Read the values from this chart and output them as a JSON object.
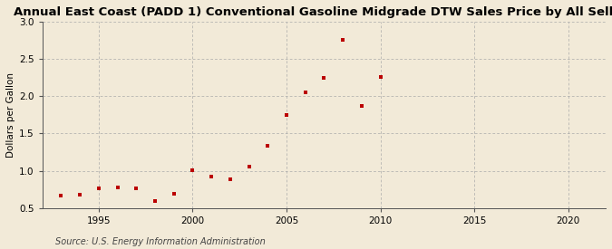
{
  "title": "Annual East Coast (PADD 1) Conventional Gasoline Midgrade DTW Sales Price by All Sellers",
  "ylabel": "Dollars per Gallon",
  "source": "Source: U.S. Energy Information Administration",
  "years": [
    1993,
    1994,
    1995,
    1996,
    1997,
    1998,
    1999,
    2000,
    2001,
    2002,
    2003,
    2004,
    2005,
    2006,
    2007,
    2008,
    2009,
    2010
  ],
  "values": [
    0.67,
    0.68,
    0.77,
    0.78,
    0.77,
    0.59,
    0.69,
    1.01,
    0.92,
    0.88,
    1.05,
    1.33,
    1.75,
    2.05,
    2.24,
    2.76,
    1.87,
    2.26
  ],
  "marker_color": "#bb0000",
  "marker": "s",
  "marker_size": 3.5,
  "xlim": [
    1992,
    2022
  ],
  "ylim": [
    0.5,
    3.0
  ],
  "yticks": [
    0.5,
    1.0,
    1.5,
    2.0,
    2.5,
    3.0
  ],
  "xticks": [
    1995,
    2000,
    2005,
    2010,
    2015,
    2020
  ],
  "grid_color": "#aaaaaa",
  "bg_color": "#f2ead8",
  "title_fontsize": 9.5,
  "label_fontsize": 7.5,
  "tick_fontsize": 7.5,
  "source_fontsize": 7
}
